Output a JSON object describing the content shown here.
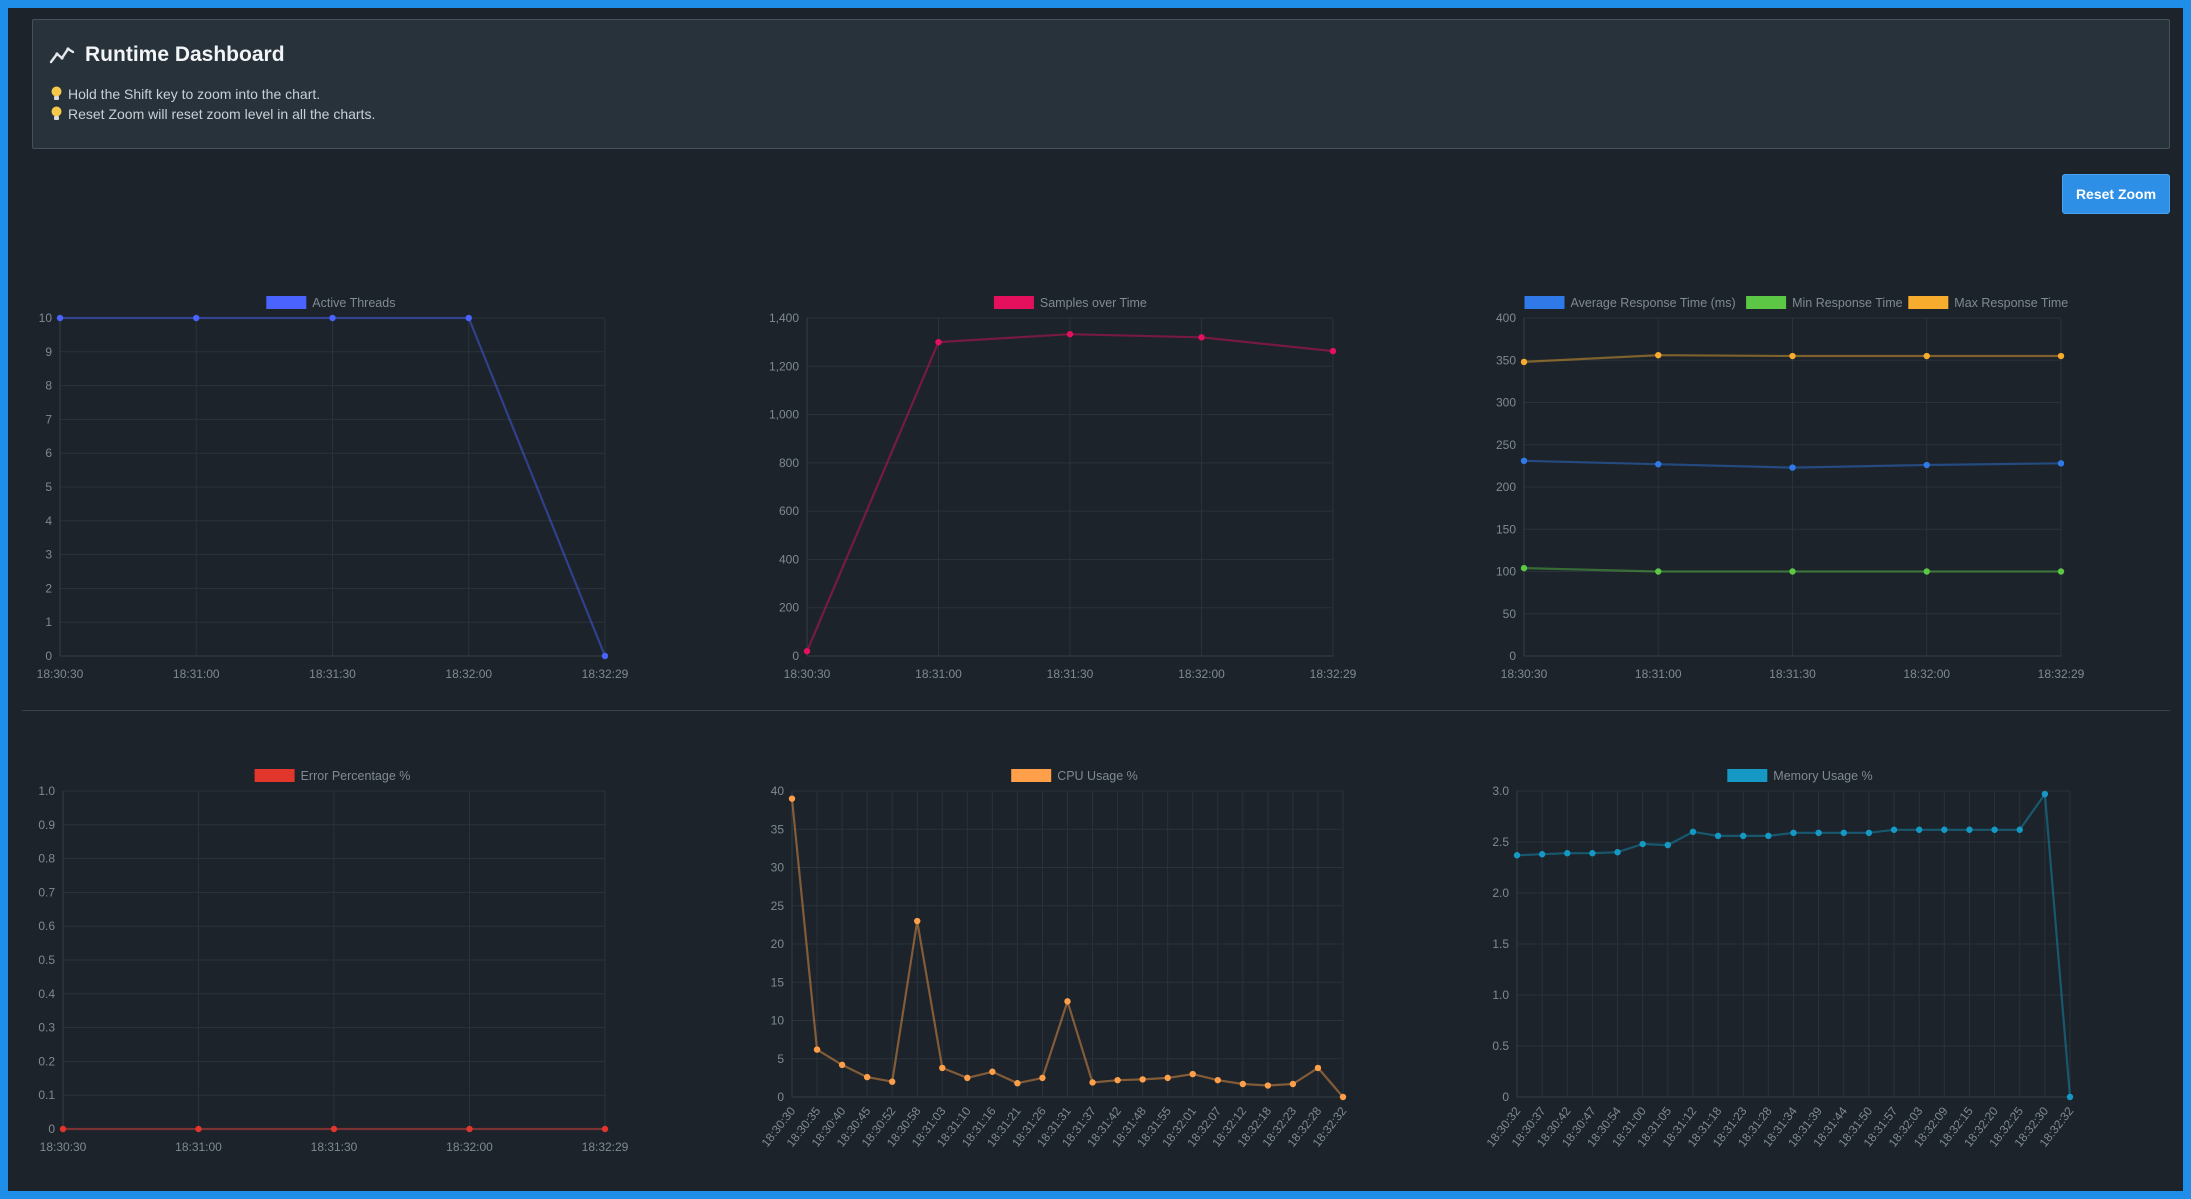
{
  "header": {
    "title": "Runtime Dashboard",
    "title_icon": "chart-line-icon",
    "tips": [
      "Hold the Shift key to zoom into the chart.",
      "Reset Zoom will reset zoom level in all the charts."
    ],
    "tip_icon": "lightbulb-icon"
  },
  "toolbar": {
    "reset_zoom_label": "Reset Zoom"
  },
  "charts": [
    {
      "type": "line",
      "categories": [
        "18:30:30",
        "18:31:00",
        "18:31:30",
        "18:32:00",
        "18:32:29"
      ],
      "series": [
        {
          "name": "Active Threads",
          "color": "#4a63ff",
          "values": [
            10,
            10,
            10,
            10,
            0
          ]
        }
      ],
      "ylim": [
        0,
        10
      ],
      "yticks": [
        0,
        1,
        2,
        3,
        4,
        5,
        6,
        7,
        8,
        9,
        10
      ],
      "ytick_fmt": "int",
      "xlabel_rotate": false,
      "legend": "top-center",
      "grid": true
    },
    {
      "type": "line",
      "categories": [
        "18:30:30",
        "18:31:00",
        "18:31:30",
        "18:32:00",
        "18:32:29"
      ],
      "series": [
        {
          "name": "Samples over Time",
          "color": "#e5105d",
          "values": [
            20,
            1300,
            1333,
            1320,
            1263
          ]
        }
      ],
      "ylim": [
        0,
        1400
      ],
      "yticks": [
        0,
        200,
        400,
        600,
        800,
        1000,
        1200,
        1400
      ],
      "ytick_fmt": "comma",
      "xlabel_rotate": false,
      "legend": "top-center",
      "grid": true
    },
    {
      "type": "line",
      "categories": [
        "18:30:30",
        "18:31:00",
        "18:31:30",
        "18:32:00",
        "18:32:29"
      ],
      "series": [
        {
          "name": "Average Response Time (ms)",
          "color": "#2f7ae8",
          "values": [
            231,
            227,
            223,
            226,
            228
          ]
        },
        {
          "name": "Min Response Time",
          "color": "#5cc645",
          "values": [
            104,
            100,
            100,
            100,
            100
          ]
        },
        {
          "name": "Max Response Time",
          "color": "#f7ac2e",
          "values": [
            348,
            356,
            355,
            355,
            355
          ]
        }
      ],
      "ylim": [
        0,
        400
      ],
      "yticks": [
        0,
        50,
        100,
        150,
        200,
        250,
        300,
        350,
        400
      ],
      "ytick_fmt": "int",
      "xlabel_rotate": false,
      "legend": "top-center",
      "grid": true
    },
    {
      "type": "line",
      "categories": [
        "18:30:30",
        "18:31:00",
        "18:31:30",
        "18:32:00",
        "18:32:29"
      ],
      "series": [
        {
          "name": "Error Percentage %",
          "color": "#e0362c",
          "values": [
            0,
            0,
            0,
            0,
            0
          ]
        }
      ],
      "ylim": [
        0,
        1.0
      ],
      "yticks": [
        0,
        0.1,
        0.2,
        0.3,
        0.4,
        0.5,
        0.6,
        0.7,
        0.8,
        0.9,
        1.0
      ],
      "ytick_fmt": "1dec",
      "xlabel_rotate": false,
      "legend": "top-center",
      "grid": true
    },
    {
      "type": "line",
      "categories": [
        "18:30:30",
        "18:30:35",
        "18:30:40",
        "18:30:45",
        "18:30:52",
        "18:30:58",
        "18:31:03",
        "18:31:10",
        "18:31:16",
        "18:31:21",
        "18:31:26",
        "18:31:31",
        "18:31:37",
        "18:31:42",
        "18:31:48",
        "18:31:55",
        "18:32:01",
        "18:32:07",
        "18:32:12",
        "18:32:18",
        "18:32:23",
        "18:32:28",
        "18:32:32"
      ],
      "series": [
        {
          "name": "CPU Usage %",
          "color": "#ff9f4a",
          "values": [
            39,
            6.2,
            4.2,
            2.6,
            2,
            23,
            3.8,
            2.5,
            3.3,
            1.8,
            2.5,
            12.5,
            1.9,
            2.2,
            2.3,
            2.5,
            3,
            2.2,
            1.7,
            1.5,
            1.7,
            3.8,
            0
          ]
        }
      ],
      "ylim": [
        0,
        40
      ],
      "yticks": [
        0,
        5,
        10,
        15,
        20,
        25,
        30,
        35,
        40
      ],
      "ytick_fmt": "int",
      "xlabel_rotate": true,
      "legend": "top-center",
      "grid": true
    },
    {
      "type": "line",
      "categories": [
        "18:30:32",
        "18:30:37",
        "18:30:42",
        "18:30:47",
        "18:30:54",
        "18:31:00",
        "18:31:05",
        "18:31:12",
        "18:31:18",
        "18:31:23",
        "18:31:28",
        "18:31:34",
        "18:31:39",
        "18:31:44",
        "18:31:50",
        "18:31:57",
        "18:32:03",
        "18:32:09",
        "18:32:15",
        "18:32:20",
        "18:32:25",
        "18:32:30",
        "18:32:32"
      ],
      "series": [
        {
          "name": "Memory Usage %",
          "color": "#1599c4",
          "values": [
            2.37,
            2.38,
            2.39,
            2.39,
            2.4,
            2.48,
            2.47,
            2.6,
            2.56,
            2.56,
            2.56,
            2.59,
            2.59,
            2.59,
            2.59,
            2.62,
            2.62,
            2.62,
            2.62,
            2.62,
            2.62,
            2.97,
            0
          ]
        }
      ],
      "ylim": [
        0,
        3.0
      ],
      "yticks": [
        0,
        0.5,
        1.0,
        1.5,
        2.0,
        2.5,
        3.0
      ],
      "ytick_fmt": "1dec",
      "xlabel_rotate": true,
      "legend": "top-center",
      "grid": true
    }
  ]
}
